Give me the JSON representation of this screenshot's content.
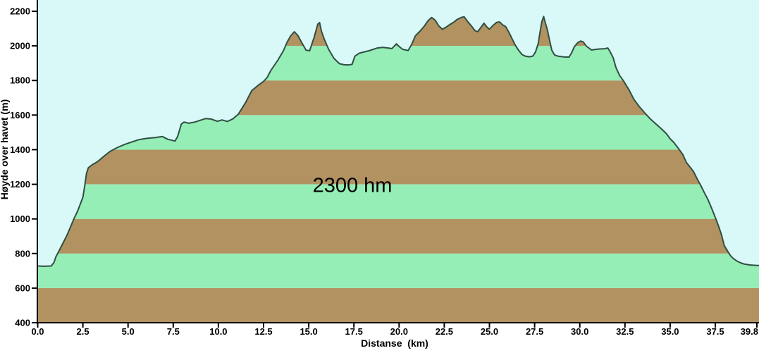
{
  "annotation": {
    "text": "2300 hm"
  },
  "axes": {
    "y": {
      "label": "Høyde over havet (m)",
      "tick_labels": [
        "400",
        "600",
        "800",
        "1000",
        "1200",
        "1400",
        "1600",
        "1800",
        "2000",
        "2200"
      ],
      "min": 400,
      "max_tick": 2200
    },
    "x": {
      "label": "Distanse  (km)",
      "tick_labels": [
        "0.0",
        "2.5",
        "5.0",
        "7.5",
        "10.0",
        "12.5",
        "15.0",
        "17.5",
        "20.0",
        "22.5",
        "25.0",
        "27.5",
        "30.0",
        "32.5",
        "35.0",
        "37.5",
        "39.8"
      ],
      "min": 0,
      "max": 39.8
    }
  },
  "colors": {
    "page_background": "#ffffff",
    "plot_background": "#d9f8f8",
    "band_brown": "#b29261",
    "band_green": "#95eeb5",
    "terrain_outline": "#2f4f42",
    "axis": "#000000",
    "text": "#000000"
  },
  "chart_data": {
    "type": "area",
    "title": "2300 hm",
    "xlabel": "Distanse (km)",
    "ylabel": "Høyde over havet (m)",
    "x_range": [
      0,
      39.8
    ],
    "y_range": [
      400,
      2265
    ],
    "y_tick_step": 200,
    "grid": false,
    "legend": "none",
    "fill_style": "horizontal bands of 200 m alternating brown/green clipped by terrain, sky light cyan",
    "band_interval_m": 200,
    "band_start_color_at_400m": "brown",
    "profile_km_m": [
      [
        0,
        728
      ],
      [
        0.35,
        726
      ],
      [
        0.75,
        728
      ],
      [
        0.9,
        748
      ],
      [
        1.0,
        779
      ],
      [
        1.2,
        820
      ],
      [
        1.4,
        860
      ],
      [
        1.6,
        901
      ],
      [
        1.8,
        950
      ],
      [
        2.0,
        1000
      ],
      [
        2.2,
        1043
      ],
      [
        2.35,
        1084
      ],
      [
        2.5,
        1125
      ],
      [
        2.6,
        1190
      ],
      [
        2.7,
        1262
      ],
      [
        2.8,
        1295
      ],
      [
        3.0,
        1312
      ],
      [
        3.3,
        1330
      ],
      [
        3.6,
        1356
      ],
      [
        4.0,
        1390
      ],
      [
        4.4,
        1412
      ],
      [
        4.8,
        1430
      ],
      [
        5.2,
        1444
      ],
      [
        5.6,
        1458
      ],
      [
        6.0,
        1465
      ],
      [
        6.5,
        1470
      ],
      [
        6.9,
        1476
      ],
      [
        7.2,
        1460
      ],
      [
        7.6,
        1450
      ],
      [
        7.75,
        1478
      ],
      [
        7.95,
        1548
      ],
      [
        8.1,
        1560
      ],
      [
        8.35,
        1553
      ],
      [
        8.7,
        1560
      ],
      [
        9.0,
        1570
      ],
      [
        9.3,
        1580
      ],
      [
        9.6,
        1577
      ],
      [
        9.95,
        1564
      ],
      [
        10.2,
        1572
      ],
      [
        10.5,
        1563
      ],
      [
        10.8,
        1578
      ],
      [
        11.1,
        1605
      ],
      [
        11.5,
        1672
      ],
      [
        11.85,
        1742
      ],
      [
        12.2,
        1772
      ],
      [
        12.5,
        1795
      ],
      [
        12.7,
        1817
      ],
      [
        12.9,
        1858
      ],
      [
        13.3,
        1919
      ],
      [
        13.6,
        1972
      ],
      [
        13.8,
        2021
      ],
      [
        14.0,
        2058
      ],
      [
        14.2,
        2082
      ],
      [
        14.4,
        2060
      ],
      [
        14.6,
        2021
      ],
      [
        14.85,
        1975
      ],
      [
        15.05,
        1972
      ],
      [
        15.3,
        2050
      ],
      [
        15.5,
        2125
      ],
      [
        15.6,
        2135
      ],
      [
        15.7,
        2085
      ],
      [
        15.85,
        2041
      ],
      [
        16.1,
        1980
      ],
      [
        16.4,
        1927
      ],
      [
        16.7,
        1897
      ],
      [
        16.95,
        1891
      ],
      [
        17.2,
        1890
      ],
      [
        17.4,
        1893
      ],
      [
        17.55,
        1940
      ],
      [
        17.8,
        1958
      ],
      [
        18.1,
        1966
      ],
      [
        18.4,
        1974
      ],
      [
        18.8,
        1988
      ],
      [
        19.1,
        1991
      ],
      [
        19.4,
        1988
      ],
      [
        19.6,
        1984
      ],
      [
        19.85,
        2012
      ],
      [
        20.0,
        1996
      ],
      [
        20.2,
        1980
      ],
      [
        20.5,
        1973
      ],
      [
        20.7,
        2010
      ],
      [
        20.9,
        2058
      ],
      [
        21.2,
        2090
      ],
      [
        21.4,
        2115
      ],
      [
        21.6,
        2145
      ],
      [
        21.8,
        2164
      ],
      [
        22.0,
        2148
      ],
      [
        22.2,
        2115
      ],
      [
        22.4,
        2096
      ],
      [
        22.6,
        2108
      ],
      [
        22.8,
        2123
      ],
      [
        23.0,
        2135
      ],
      [
        23.2,
        2152
      ],
      [
        23.45,
        2165
      ],
      [
        23.6,
        2168
      ],
      [
        23.8,
        2140
      ],
      [
        24.0,
        2115
      ],
      [
        24.2,
        2088
      ],
      [
        24.35,
        2082
      ],
      [
        24.5,
        2103
      ],
      [
        24.7,
        2131
      ],
      [
        24.85,
        2110
      ],
      [
        25.0,
        2096
      ],
      [
        25.2,
        2118
      ],
      [
        25.4,
        2136
      ],
      [
        25.55,
        2139
      ],
      [
        25.75,
        2120
      ],
      [
        25.9,
        2111
      ],
      [
        26.1,
        2074
      ],
      [
        26.3,
        2030
      ],
      [
        26.45,
        2000
      ],
      [
        26.6,
        1977
      ],
      [
        26.8,
        1950
      ],
      [
        27.0,
        1940
      ],
      [
        27.2,
        1937
      ],
      [
        27.4,
        1941
      ],
      [
        27.55,
        1965
      ],
      [
        27.7,
        2013
      ],
      [
        27.8,
        2080
      ],
      [
        27.9,
        2140
      ],
      [
        28.0,
        2170
      ],
      [
        28.1,
        2130
      ],
      [
        28.2,
        2095
      ],
      [
        28.3,
        2046
      ],
      [
        28.45,
        1975
      ],
      [
        28.6,
        1948
      ],
      [
        28.8,
        1940
      ],
      [
        29.1,
        1936
      ],
      [
        29.4,
        1935
      ],
      [
        29.55,
        1960
      ],
      [
        29.7,
        1995
      ],
      [
        29.9,
        2020
      ],
      [
        30.05,
        2028
      ],
      [
        30.2,
        2022
      ],
      [
        30.35,
        2000
      ],
      [
        30.5,
        1988
      ],
      [
        30.65,
        1976
      ],
      [
        30.9,
        1980
      ],
      [
        31.1,
        1982
      ],
      [
        31.35,
        1983
      ],
      [
        31.55,
        1988
      ],
      [
        31.7,
        1962
      ],
      [
        31.85,
        1930
      ],
      [
        32.0,
        1875
      ],
      [
        32.2,
        1830
      ],
      [
        32.4,
        1800
      ],
      [
        32.7,
        1750
      ],
      [
        33.0,
        1690
      ],
      [
        33.3,
        1648
      ],
      [
        33.6,
        1612
      ],
      [
        33.9,
        1578
      ],
      [
        34.2,
        1550
      ],
      [
        34.5,
        1522
      ],
      [
        34.8,
        1492
      ],
      [
        35.0,
        1463
      ],
      [
        35.2,
        1442
      ],
      [
        35.45,
        1408
      ],
      [
        35.7,
        1372
      ],
      [
        35.9,
        1326
      ],
      [
        36.1,
        1300
      ],
      [
        36.3,
        1272
      ],
      [
        36.5,
        1230
      ],
      [
        36.7,
        1192
      ],
      [
        36.9,
        1150
      ],
      [
        37.1,
        1110
      ],
      [
        37.3,
        1060
      ],
      [
        37.5,
        1008
      ],
      [
        37.7,
        952
      ],
      [
        37.85,
        905
      ],
      [
        38.0,
        845
      ],
      [
        38.2,
        810
      ],
      [
        38.35,
        786
      ],
      [
        38.5,
        770
      ],
      [
        38.7,
        756
      ],
      [
        38.9,
        746
      ],
      [
        39.1,
        739
      ],
      [
        39.4,
        734
      ],
      [
        39.8,
        731
      ]
    ]
  }
}
